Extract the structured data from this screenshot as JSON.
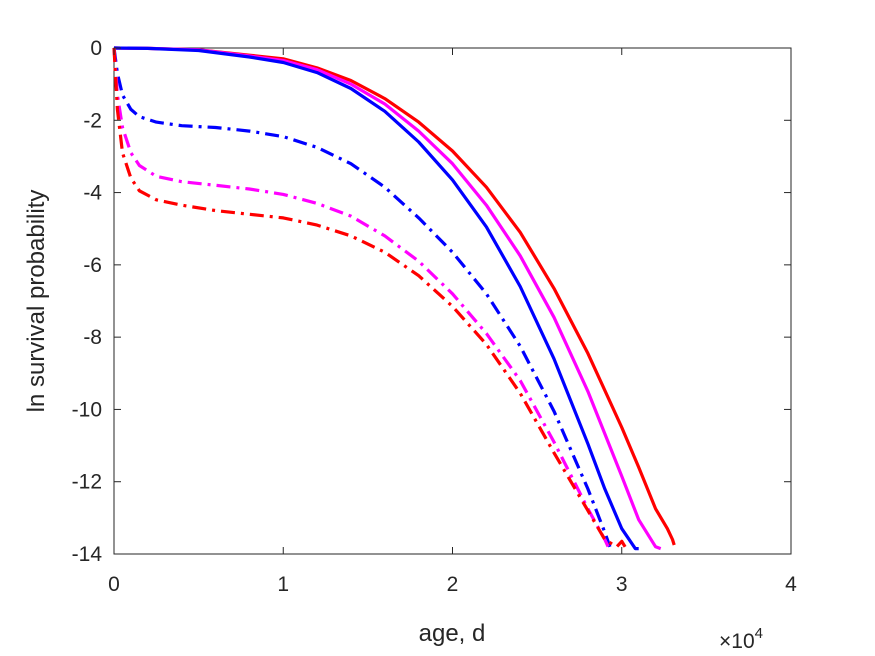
{
  "chart_data": {
    "type": "line",
    "title": "",
    "xlabel": "age, d",
    "ylabel": "ln survival probability",
    "x_exponent_label": "×10",
    "x_exponent_power": "4",
    "xlim": [
      0,
      40000
    ],
    "ylim": [
      -14,
      0
    ],
    "x_ticks": [
      0,
      10000,
      20000,
      30000,
      40000
    ],
    "x_tick_labels": [
      "0",
      "1",
      "2",
      "3",
      "4"
    ],
    "y_ticks": [
      0,
      -2,
      -4,
      -6,
      -8,
      -10,
      -12,
      -14
    ],
    "y_tick_labels": [
      "0",
      "-2",
      "-4",
      "-6",
      "-8",
      "-10",
      "-12",
      "-14"
    ],
    "grid": false,
    "series": [
      {
        "color": "#ff0000",
        "style": "solid",
        "x": [
          0,
          2000,
          5000,
          8000,
          10000,
          12000,
          14000,
          16000,
          18000,
          20000,
          22000,
          24000,
          26000,
          28000,
          30000,
          31000,
          32000,
          32700,
          33000,
          33100
        ],
        "y": [
          0,
          -0.01,
          -0.05,
          -0.2,
          -0.3,
          -0.55,
          -0.9,
          -1.4,
          -2.05,
          -2.85,
          -3.85,
          -5.1,
          -6.65,
          -8.45,
          -10.5,
          -11.6,
          -12.75,
          -13.3,
          -13.6,
          -13.75
        ]
      },
      {
        "color": "#ff00ff",
        "style": "solid",
        "x": [
          0,
          2000,
          5000,
          8000,
          10000,
          12000,
          14000,
          16000,
          18000,
          20000,
          22000,
          24000,
          26000,
          28000,
          30000,
          31000,
          32000,
          32300
        ],
        "y": [
          0,
          -0.01,
          -0.05,
          -0.22,
          -0.35,
          -0.6,
          -1.0,
          -1.55,
          -2.3,
          -3.2,
          -4.35,
          -5.75,
          -7.45,
          -9.5,
          -11.85,
          -13.05,
          -13.8,
          -13.85
        ]
      },
      {
        "color": "#0000ff",
        "style": "solid",
        "x": [
          0,
          2000,
          5000,
          8000,
          10000,
          12000,
          14000,
          16000,
          18000,
          20000,
          22000,
          24000,
          26000,
          28000,
          29000,
          30000,
          30800,
          31000
        ],
        "y": [
          0,
          -0.01,
          -0.07,
          -0.25,
          -0.4,
          -0.68,
          -1.12,
          -1.75,
          -2.6,
          -3.65,
          -4.95,
          -6.6,
          -8.6,
          -10.95,
          -12.2,
          -13.3,
          -13.85,
          -13.85
        ]
      },
      {
        "color": "#0000ff",
        "style": "dashdot",
        "x": [
          0,
          200,
          500,
          1000,
          1500,
          2500,
          4000,
          6000,
          8000,
          10000,
          12000,
          14000,
          16000,
          18000,
          20000,
          22000,
          24000,
          26000,
          28000,
          29000,
          29300
        ],
        "y": [
          0,
          -0.7,
          -1.3,
          -1.7,
          -1.9,
          -2.05,
          -2.15,
          -2.2,
          -2.3,
          -2.45,
          -2.75,
          -3.2,
          -3.85,
          -4.7,
          -5.65,
          -6.8,
          -8.25,
          -10.05,
          -12.2,
          -13.4,
          -13.8
        ]
      },
      {
        "color": "#ff00ff",
        "style": "dashdot",
        "x": [
          0,
          200,
          500,
          1000,
          1500,
          2500,
          4000,
          6000,
          8000,
          10000,
          12000,
          14000,
          16000,
          18000,
          20000,
          22000,
          24000,
          26000,
          28000,
          29000,
          29200
        ],
        "y": [
          0,
          -1.3,
          -2.2,
          -2.9,
          -3.25,
          -3.55,
          -3.7,
          -3.8,
          -3.9,
          -4.05,
          -4.3,
          -4.65,
          -5.2,
          -5.9,
          -6.8,
          -7.9,
          -9.2,
          -10.9,
          -12.75,
          -13.6,
          -13.8
        ]
      },
      {
        "color": "#ff0000",
        "style": "dashdot",
        "x": [
          0,
          200,
          500,
          1000,
          1500,
          2500,
          4000,
          6000,
          8000,
          10000,
          12000,
          14000,
          16000,
          18000,
          20000,
          22000,
          24000,
          26000,
          28000,
          29000,
          29700,
          30000,
          30200
        ],
        "y": [
          0,
          -1.7,
          -2.9,
          -3.6,
          -3.95,
          -4.2,
          -4.35,
          -4.5,
          -4.6,
          -4.7,
          -4.9,
          -5.2,
          -5.65,
          -6.3,
          -7.15,
          -8.2,
          -9.55,
          -11.2,
          -12.8,
          -13.6,
          -13.8,
          -13.65,
          -13.8
        ]
      }
    ]
  }
}
